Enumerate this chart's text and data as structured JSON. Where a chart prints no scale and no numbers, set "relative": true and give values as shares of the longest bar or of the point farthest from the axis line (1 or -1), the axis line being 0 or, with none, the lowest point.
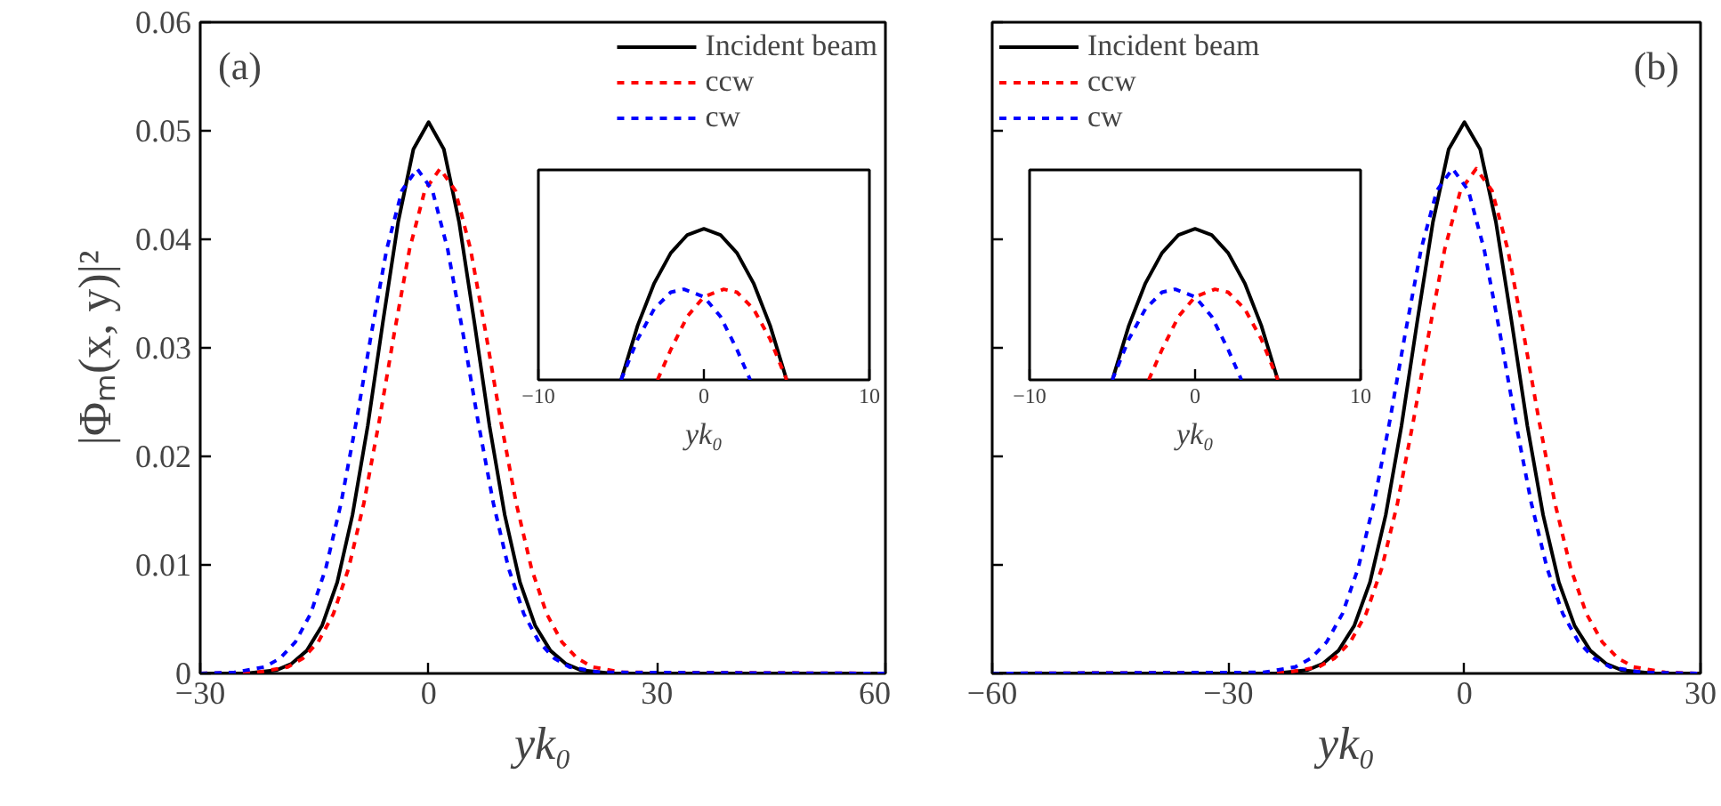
{
  "chart_data": [
    {
      "type": "line",
      "xlabel": "yk₀",
      "ylabel": "|Φₘ(x, y)|²",
      "xlim": [
        -30,
        60
      ],
      "xticks": [
        -30,
        0,
        30,
        60
      ],
      "ylim": [
        0,
        0.06
      ],
      "yticks": [
        0,
        0.01,
        0.02,
        0.03,
        0.04,
        0.05,
        0.06
      ],
      "legend": "top right",
      "grid": false,
      "annotations": [
        "(a)"
      ],
      "series": [
        {
          "name": "Incident beam",
          "color": "#000000",
          "line_style": "solid",
          "x": [
            -30,
            -24,
            -20,
            -18,
            -16,
            -14,
            -12,
            -10,
            -8,
            -6,
            -4,
            -2,
            0,
            2,
            4,
            6,
            8,
            10,
            12,
            14,
            16,
            18,
            20,
            24,
            30,
            60
          ],
          "values": [
            0,
            0,
            0.0003,
            0.0009,
            0.0021,
            0.0044,
            0.0084,
            0.0146,
            0.0228,
            0.0324,
            0.0416,
            0.0483,
            0.0508,
            0.0483,
            0.0416,
            0.0324,
            0.0228,
            0.0146,
            0.0084,
            0.0044,
            0.0021,
            0.0009,
            0.0003,
            0,
            0,
            0
          ]
        },
        {
          "name": "ccw",
          "color": "#ff0000",
          "line_style": "dashed",
          "x": [
            -30,
            -22.5,
            -18.5,
            -16.5,
            -14.5,
            -12.5,
            -10.5,
            -8.5,
            -6.5,
            -4.5,
            -2.5,
            -0.5,
            1.5,
            3.5,
            5.5,
            7.5,
            9.5,
            11.5,
            13.5,
            15.5,
            17.5,
            19.5,
            21.5,
            25.5,
            60
          ],
          "values": [
            0,
            0.0001,
            0.0006,
            0.0014,
            0.0029,
            0.0055,
            0.0097,
            0.0157,
            0.0232,
            0.0314,
            0.0391,
            0.0445,
            0.0465,
            0.0445,
            0.0391,
            0.0314,
            0.0232,
            0.0157,
            0.0097,
            0.0055,
            0.0029,
            0.0014,
            0.0006,
            0.0001,
            0
          ]
        },
        {
          "name": "cw",
          "color": "#0000ff",
          "line_style": "dashed",
          "x": [
            -30,
            -25.5,
            -21.5,
            -19.5,
            -17.5,
            -15.5,
            -13.5,
            -11.5,
            -9.5,
            -7.5,
            -5.5,
            -3.5,
            -1.5,
            0.5,
            2.5,
            4.5,
            6.5,
            8.5,
            10.5,
            12.5,
            14.5,
            16.5,
            18.5,
            22.5,
            60
          ],
          "values": [
            0,
            0.0001,
            0.0006,
            0.0014,
            0.0029,
            0.0055,
            0.0097,
            0.0157,
            0.0232,
            0.0314,
            0.0391,
            0.0445,
            0.0465,
            0.0445,
            0.0391,
            0.0314,
            0.0232,
            0.0157,
            0.0097,
            0.0055,
            0.0029,
            0.0014,
            0.0006,
            0.0001,
            0
          ]
        }
      ]
    },
    {
      "type": "line",
      "relative": true,
      "xlabel": "yk₀",
      "xlim": [
        -10,
        10
      ],
      "xticks": [
        -10,
        0,
        10
      ],
      "grid": false,
      "series": [
        {
          "color": "#000000",
          "line_style": "solid",
          "x": [
            -5,
            -4,
            -3,
            -2,
            -1,
            0,
            1,
            2,
            3,
            4,
            5
          ],
          "values": [
            0,
            0.36,
            0.64,
            0.84,
            0.96,
            1,
            0.96,
            0.84,
            0.64,
            0.36,
            0
          ]
        },
        {
          "color": "#ff0000",
          "line_style": "dashed",
          "x": [
            -2.8,
            -2,
            -1,
            0,
            1.2,
            2,
            3,
            4,
            5
          ],
          "values": [
            0,
            0.2,
            0.42,
            0.55,
            0.6,
            0.58,
            0.47,
            0.27,
            0
          ]
        },
        {
          "color": "#0000ff",
          "line_style": "dashed",
          "x": [
            -5,
            -4,
            -3,
            -2,
            -1.2,
            0,
            1,
            2,
            2.8
          ],
          "values": [
            0,
            0.27,
            0.47,
            0.58,
            0.6,
            0.55,
            0.42,
            0.2,
            0
          ]
        }
      ]
    },
    {
      "type": "line",
      "xlabel": "yk₀",
      "xlim": [
        -60,
        30
      ],
      "xticks": [
        -60,
        -30,
        0,
        30
      ],
      "ylim": [
        0,
        0.06
      ],
      "yticks": [
        0,
        0.01,
        0.02,
        0.03,
        0.04,
        0.05,
        0.06
      ],
      "tick_labels": "x",
      "legend": "top left",
      "grid": false,
      "annotations": [
        "(b)"
      ],
      "series": [
        {
          "name": "Incident beam",
          "color": "#000000",
          "line_style": "solid",
          "x": [
            -60,
            -30,
            -24,
            -20,
            -18,
            -16,
            -14,
            -12,
            -10,
            -8,
            -6,
            -4,
            -2,
            0,
            2,
            4,
            6,
            8,
            10,
            12,
            14,
            16,
            18,
            20,
            24,
            30
          ],
          "values": [
            0,
            0,
            0,
            0.0003,
            0.0009,
            0.0021,
            0.0044,
            0.0084,
            0.0146,
            0.0228,
            0.0324,
            0.0416,
            0.0483,
            0.0508,
            0.0483,
            0.0416,
            0.0324,
            0.0228,
            0.0146,
            0.0084,
            0.0044,
            0.0021,
            0.0009,
            0.0003,
            0,
            0
          ]
        },
        {
          "name": "ccw",
          "color": "#ff0000",
          "line_style": "dashed",
          "x": [
            -60,
            -22.5,
            -18.5,
            -16.5,
            -14.5,
            -12.5,
            -10.5,
            -8.5,
            -6.5,
            -4.5,
            -2.5,
            -0.5,
            1.5,
            3.5,
            5.5,
            7.5,
            9.5,
            11.5,
            13.5,
            15.5,
            17.5,
            19.5,
            21.5,
            25.5,
            30
          ],
          "values": [
            0,
            0.0001,
            0.0006,
            0.0014,
            0.0029,
            0.0055,
            0.0097,
            0.0157,
            0.0232,
            0.0314,
            0.0391,
            0.0445,
            0.0465,
            0.0445,
            0.0391,
            0.0314,
            0.0232,
            0.0157,
            0.0097,
            0.0055,
            0.0029,
            0.0014,
            0.0006,
            0.0001,
            0
          ]
        },
        {
          "name": "cw",
          "color": "#0000ff",
          "line_style": "dashed",
          "x": [
            -60,
            -25.5,
            -21.5,
            -19.5,
            -17.5,
            -15.5,
            -13.5,
            -11.5,
            -9.5,
            -7.5,
            -5.5,
            -3.5,
            -1.5,
            0.5,
            2.5,
            4.5,
            6.5,
            8.5,
            10.5,
            12.5,
            14.5,
            16.5,
            18.5,
            22.5,
            30
          ],
          "values": [
            0,
            0.0001,
            0.0006,
            0.0014,
            0.0029,
            0.0055,
            0.0097,
            0.0157,
            0.0232,
            0.0314,
            0.0391,
            0.0445,
            0.0465,
            0.0445,
            0.0391,
            0.0314,
            0.0232,
            0.0157,
            0.0097,
            0.0055,
            0.0029,
            0.0014,
            0.0006,
            0.0001,
            0
          ]
        }
      ]
    },
    {
      "type": "line",
      "relative": true,
      "xlabel": "yk₀",
      "xlim": [
        -10,
        10
      ],
      "xticks": [
        -10,
        0,
        10
      ],
      "grid": false,
      "series": [
        {
          "color": "#000000",
          "line_style": "solid",
          "x": [
            -5,
            -4,
            -3,
            -2,
            -1,
            0,
            1,
            2,
            3,
            4,
            5
          ],
          "values": [
            0,
            0.36,
            0.64,
            0.84,
            0.96,
            1,
            0.96,
            0.84,
            0.64,
            0.36,
            0
          ]
        },
        {
          "color": "#ff0000",
          "line_style": "dashed",
          "x": [
            -2.8,
            -2,
            -1,
            0,
            1.2,
            2,
            3,
            4,
            5
          ],
          "values": [
            0,
            0.2,
            0.42,
            0.55,
            0.6,
            0.58,
            0.47,
            0.27,
            0
          ]
        },
        {
          "color": "#0000ff",
          "line_style": "dashed",
          "x": [
            -5,
            -4,
            -3,
            -2,
            -1.2,
            0,
            1,
            2,
            2.8
          ],
          "values": [
            0,
            0.27,
            0.47,
            0.58,
            0.6,
            0.55,
            0.42,
            0.2,
            0
          ]
        }
      ]
    }
  ]
}
